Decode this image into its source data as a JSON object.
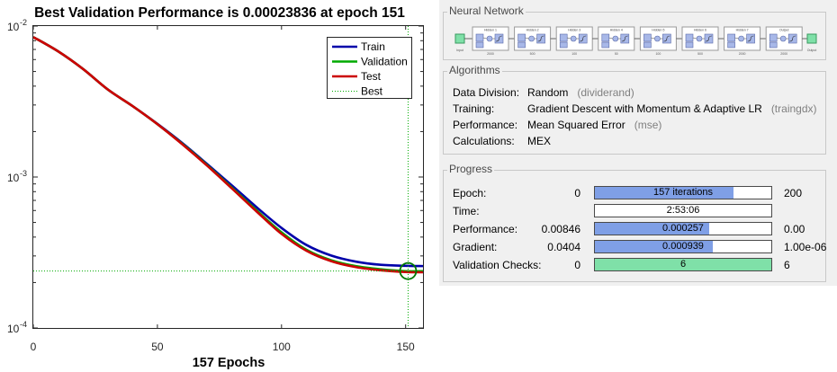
{
  "plot": {
    "title": "Best Validation Performance is 0.00023836 at epoch 151",
    "xlabel": "157 Epochs",
    "y_tick_labels": [
      "10",
      "10",
      "10"
    ],
    "y_tick_exponents": [
      "-2",
      "-3",
      "-4"
    ],
    "x_tick_labels": [
      "0",
      "50",
      "100",
      "150"
    ],
    "legend": {
      "train": "Train",
      "validation": "Validation",
      "test": "Test",
      "best": "Best"
    }
  },
  "chart_data": {
    "type": "line",
    "title": "Best Validation Performance is 0.00023836 at epoch 151",
    "xlabel": "157 Epochs",
    "ylabel": "",
    "y_scale": "log",
    "xlim": [
      0,
      157
    ],
    "ylim": [
      0.0001,
      0.01
    ],
    "grid": false,
    "legend_position": "top-right",
    "series": [
      {
        "name": "Train",
        "color": "#0000aa",
        "x": [
          0,
          10,
          20,
          30,
          40,
          50,
          60,
          70,
          80,
          90,
          100,
          110,
          120,
          130,
          140,
          150,
          157
        ],
        "y": [
          0.00846,
          0.0068,
          0.0052,
          0.0038,
          0.00295,
          0.00225,
          0.00168,
          0.00122,
          0.00088,
          0.00063,
          0.00046,
          0.000355,
          0.000302,
          0.000275,
          0.000262,
          0.000258,
          0.000257
        ]
      },
      {
        "name": "Validation",
        "color": "#00aa00",
        "x": [
          0,
          10,
          20,
          30,
          40,
          50,
          60,
          70,
          80,
          90,
          100,
          110,
          120,
          130,
          140,
          150,
          157
        ],
        "y": [
          0.00846,
          0.0068,
          0.0052,
          0.0038,
          0.00295,
          0.00224,
          0.00166,
          0.0012,
          0.00085,
          0.0006,
          0.00043,
          0.00033,
          0.000281,
          0.000257,
          0.000245,
          0.000238,
          0.000238
        ]
      },
      {
        "name": "Test",
        "color": "#cc0000",
        "x": [
          0,
          10,
          20,
          30,
          40,
          50,
          60,
          70,
          80,
          90,
          100,
          110,
          120,
          130,
          140,
          150,
          157
        ],
        "y": [
          0.00846,
          0.0068,
          0.0052,
          0.0038,
          0.00295,
          0.00224,
          0.00165,
          0.00119,
          0.00084,
          0.00059,
          0.00042,
          0.000325,
          0.000277,
          0.000253,
          0.000241,
          0.000235,
          0.000234
        ]
      }
    ],
    "best": {
      "name": "Best",
      "epoch": 151,
      "value": 0.00023836
    }
  },
  "network": {
    "title": "Neural Network",
    "input_label": "Input",
    "output_label": "Output",
    "layers": [
      {
        "name": "Hidden 1",
        "size": "2000"
      },
      {
        "name": "Hidden 2",
        "size": "500"
      },
      {
        "name": "Hidden 3",
        "size": "100"
      },
      {
        "name": "Hidden 4",
        "size": "50"
      },
      {
        "name": "Hidden 5",
        "size": "100"
      },
      {
        "name": "Hidden 6",
        "size": "500"
      },
      {
        "name": "Hidden 7",
        "size": "2000"
      },
      {
        "name": "Output",
        "size": "2000"
      }
    ]
  },
  "algorithms": {
    "title": "Algorithms",
    "rows": [
      {
        "key": "Data Division:",
        "value": "Random",
        "fn": "(dividerand)"
      },
      {
        "key": "Training:",
        "value": "Gradient Descent with Momentum & Adaptive LR",
        "fn": "(traingdx)"
      },
      {
        "key": "Performance:",
        "value": "Mean Squared Error",
        "fn": "(mse)"
      },
      {
        "key": "Calculations:",
        "value": "MEX",
        "fn": ""
      }
    ]
  },
  "progress": {
    "title": "Progress",
    "rows": [
      {
        "label": "Epoch:",
        "min": "0",
        "bar_text": "157 iterations",
        "max": "200",
        "fraction": 0.785,
        "style": "blue"
      },
      {
        "label": "Time:",
        "min": "",
        "bar_text": "2:53:06",
        "max": "",
        "fraction": 0,
        "style": "blue"
      },
      {
        "label": "Performance:",
        "min": "0.00846",
        "bar_text": "0.000257",
        "max": "0.00",
        "fraction": 0.65,
        "style": "blue"
      },
      {
        "label": "Gradient:",
        "min": "0.0404",
        "bar_text": "0.000939",
        "max": "1.00e-06",
        "fraction": 0.67,
        "style": "blue"
      },
      {
        "label": "Validation Checks:",
        "min": "0",
        "bar_text": "6",
        "max": "6",
        "fraction": 1.0,
        "style": "green"
      }
    ]
  }
}
